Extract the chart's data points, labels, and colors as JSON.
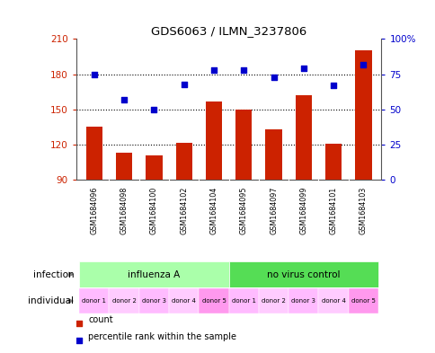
{
  "title": "GDS6063 / ILMN_3237806",
  "samples": [
    "GSM1684096",
    "GSM1684098",
    "GSM1684100",
    "GSM1684102",
    "GSM1684104",
    "GSM1684095",
    "GSM1684097",
    "GSM1684099",
    "GSM1684101",
    "GSM1684103"
  ],
  "counts": [
    135,
    113,
    111,
    122,
    157,
    150,
    133,
    162,
    121,
    200
  ],
  "percentiles": [
    75,
    57,
    50,
    68,
    78,
    78,
    73,
    79,
    67,
    82
  ],
  "y_min": 90,
  "y_max": 210,
  "y_ticks": [
    90,
    120,
    150,
    180,
    210
  ],
  "y2_ticks": [
    0,
    25,
    50,
    75,
    100
  ],
  "infection_groups": [
    {
      "label": "influenza A",
      "start": 0,
      "end": 5,
      "color": "#AAFFAA"
    },
    {
      "label": "no virus control",
      "start": 5,
      "end": 10,
      "color": "#55DD55"
    }
  ],
  "individuals": [
    "donor 1",
    "donor 2",
    "donor 3",
    "donor 4",
    "donor 5",
    "donor 1",
    "donor 2",
    "donor 3",
    "donor 4",
    "donor 5"
  ],
  "individual_colors": [
    "#FFBBFF",
    "#FFCCFF",
    "#FFBBFF",
    "#FFCCFF",
    "#FF99EE",
    "#FFBBFF",
    "#FFCCFF",
    "#FFBBFF",
    "#FFCCFF",
    "#FF99EE"
  ],
  "bar_color": "#CC2200",
  "dot_color": "#0000CC",
  "bar_width": 0.55,
  "tick_label_color_left": "#CC2200",
  "tick_label_color_right": "#0000CC",
  "background_color": "#FFFFFF",
  "sample_bg_color": "#C8C8C8",
  "grid_dotted_color": "#000000"
}
